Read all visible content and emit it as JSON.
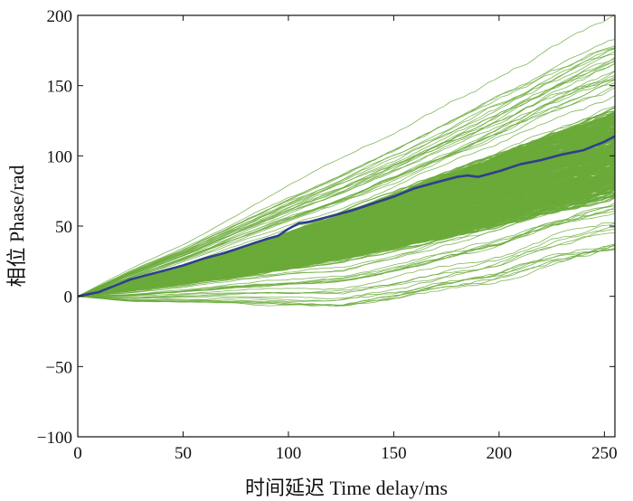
{
  "chart_data": {
    "type": "line",
    "xlabel": "时间延迟 Time delay/ms",
    "ylabel": "相位 Phase/rad",
    "xlim": [
      0,
      255
    ],
    "ylim": [
      -100,
      200
    ],
    "x_ticks": [
      0,
      50,
      100,
      150,
      200,
      250
    ],
    "y_ticks": [
      -100,
      -50,
      0,
      50,
      100,
      150,
      200
    ],
    "x_tick_labels": [
      "0",
      "50",
      "100",
      "150",
      "200",
      "250"
    ],
    "y_tick_labels": [
      "−100",
      "−50",
      "0",
      "50",
      "100",
      "150",
      "200"
    ],
    "grid": false,
    "legend": "none",
    "colors": {
      "ensemble": "#6aaa3a",
      "mean": "#2e3f8f"
    },
    "ensemble_envelope": {
      "x": [
        0,
        25,
        50,
        75,
        100,
        125,
        150,
        175,
        200,
        225,
        255
      ],
      "min": [
        0,
        -4,
        -5,
        -6,
        -8,
        -10,
        -5,
        2,
        8,
        20,
        30
      ],
      "max": [
        0,
        20,
        38,
        58,
        78,
        96,
        115,
        135,
        155,
        175,
        196
      ],
      "core_low": [
        0,
        4,
        9,
        14,
        20,
        27,
        35,
        44,
        53,
        63,
        75
      ],
      "core_high": [
        0,
        11,
        21,
        33,
        45,
        58,
        72,
        86,
        100,
        114,
        130
      ]
    },
    "series": [
      {
        "x": [
          0,
          5,
          10,
          15,
          20,
          25,
          30,
          40,
          50,
          60,
          70,
          80,
          90,
          95,
          100,
          105,
          110,
          120,
          130,
          140,
          150,
          160,
          170,
          180,
          185,
          190,
          200,
          210,
          220,
          230,
          240,
          250,
          255
        ],
        "values": [
          0,
          1.5,
          3,
          6,
          9,
          12,
          14,
          18,
          22,
          27,
          31,
          36,
          41,
          43,
          48,
          52,
          53,
          57,
          61,
          66,
          71,
          77,
          81,
          85,
          86,
          85,
          89,
          94,
          97,
          101,
          104,
          110,
          114
        ]
      }
    ]
  }
}
